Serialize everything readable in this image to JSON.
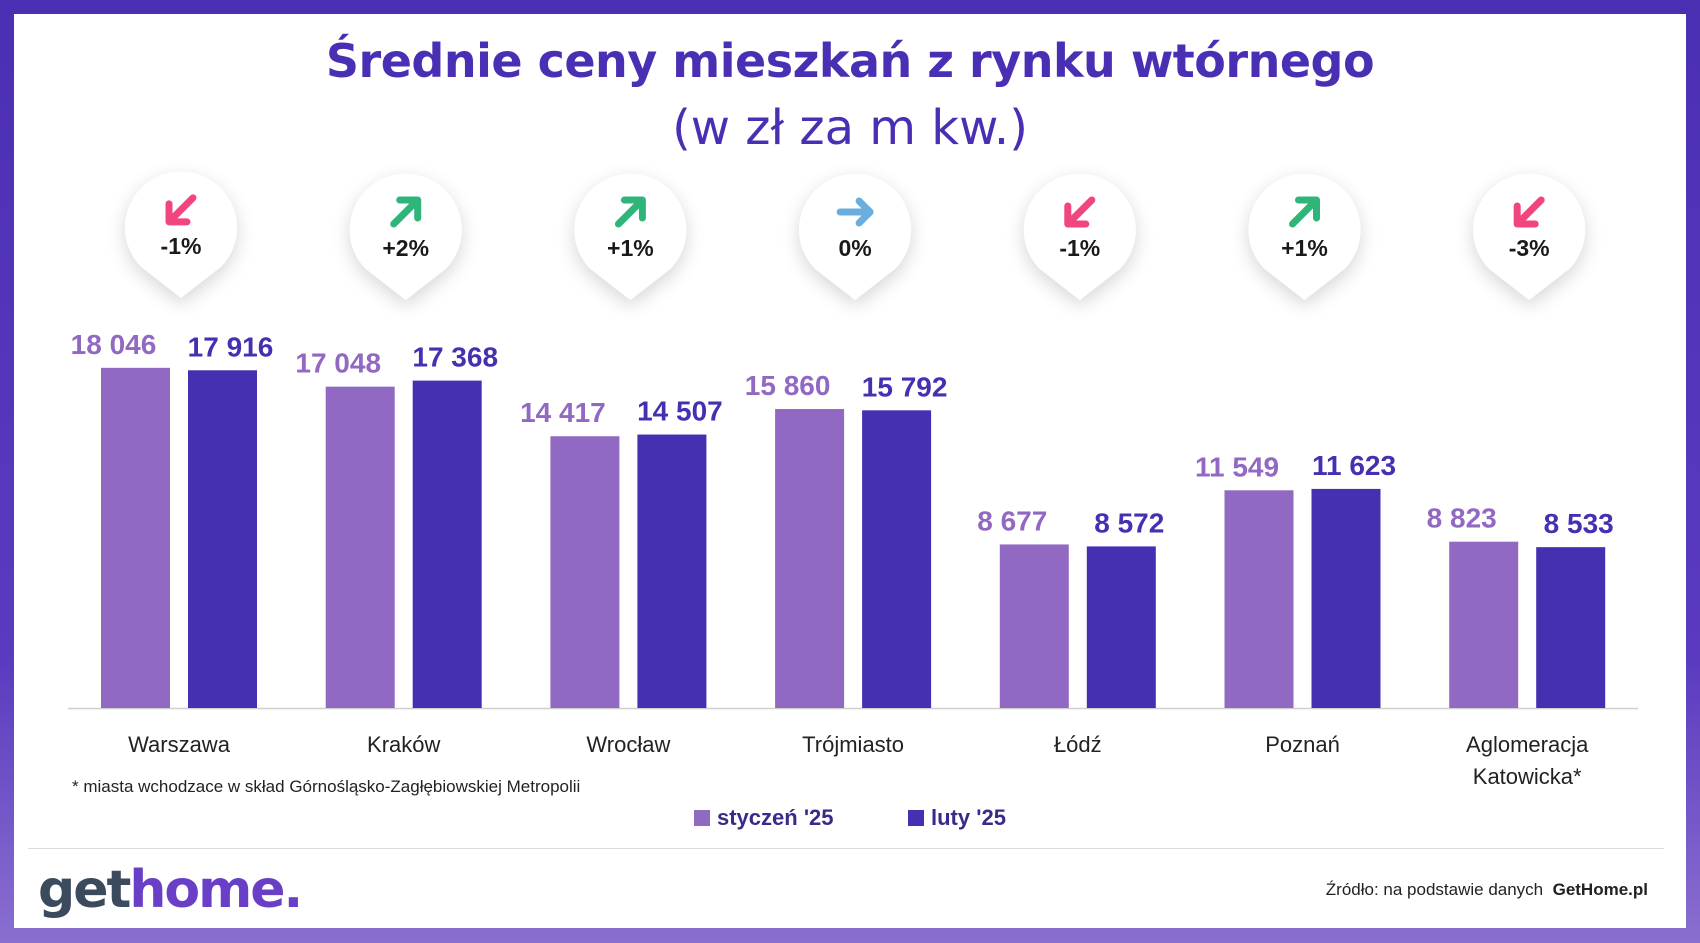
{
  "title": "Średnie ceny mieszkań z rynku wtórnego",
  "subtitle": "(w zł za m kw.)",
  "footnote": "* miasta wchodzace w skład Górnośląsko-Zagłębiowskiej Metropolii",
  "source_prefix": "Źródło: na podstawie danych",
  "source_brand": "GetHome.pl",
  "logo": {
    "part1": "get",
    "part2": "home."
  },
  "colors": {
    "styczen": "#9169c2",
    "luty": "#4530b2",
    "up": "#2fb57a",
    "down": "#f0457d",
    "flat": "#6aaee0",
    "title": "#4a2fb4"
  },
  "chart_data": {
    "type": "bar",
    "title": "Średnie ceny mieszkań z rynku wtórnego",
    "subtitle": "(w zł za m kw.)",
    "categories": [
      "Warszawa",
      "Kraków",
      "Wrocław",
      "Trójmiasto",
      "Łódź",
      "Poznań",
      "Aglomeracja Katowicka*"
    ],
    "series": [
      {
        "name": "styczeń '25",
        "values": [
          18046,
          17048,
          14417,
          15860,
          8677,
          11549,
          8823
        ],
        "labels": [
          "18 046",
          "17 048",
          "14 417",
          "15 860",
          "8 677",
          "11 549",
          "8 823"
        ]
      },
      {
        "name": "luty '25",
        "values": [
          17916,
          17368,
          14507,
          15792,
          8572,
          11623,
          8533
        ],
        "labels": [
          "17 916",
          "17 368",
          "14 507",
          "15 792",
          "8 572",
          "11 623",
          "8 533"
        ]
      }
    ],
    "changes": [
      {
        "label": "-1%",
        "direction": "down"
      },
      {
        "label": "+2%",
        "direction": "up"
      },
      {
        "label": "+1%",
        "direction": "up"
      },
      {
        "label": "0%",
        "direction": "flat"
      },
      {
        "label": "-1%",
        "direction": "down"
      },
      {
        "label": "+1%",
        "direction": "up"
      },
      {
        "label": "-3%",
        "direction": "down"
      }
    ],
    "legend_position": "bottom",
    "grid": false
  }
}
